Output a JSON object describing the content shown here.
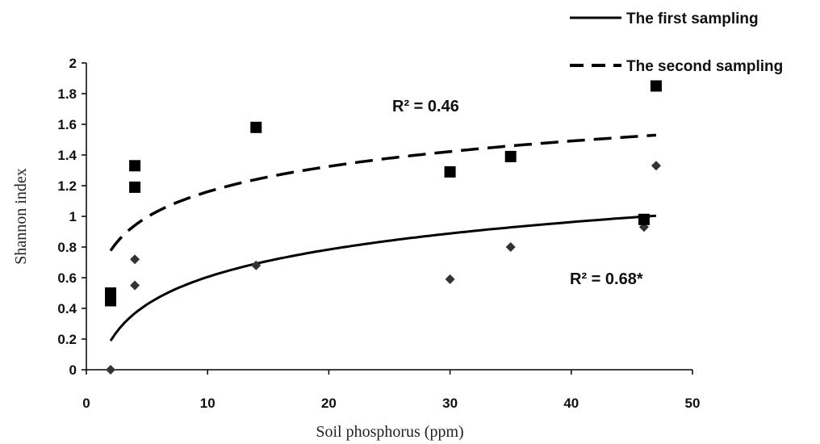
{
  "chart_data": {
    "type": "scatter",
    "title": "",
    "xlabel": "Soil phosphorus (ppm)",
    "ylabel": "Shannon index",
    "xlim": [
      0,
      50
    ],
    "ylim": [
      0,
      2
    ],
    "x_ticks": [
      0,
      10,
      20,
      30,
      40,
      50
    ],
    "y_ticks": [
      0,
      0.2,
      0.4,
      0.6,
      0.8,
      1,
      1.2,
      1.4,
      1.6,
      1.8,
      2
    ],
    "x_tick_labels": [
      "0",
      "10",
      "20",
      "30",
      "40",
      "50"
    ],
    "y_tick_labels": [
      "0",
      "0.2",
      "0.4",
      "0.6",
      "0.8",
      "1",
      "1.2",
      "1.4",
      "1.6",
      "1.8",
      "2"
    ],
    "grid": false,
    "legend_position": "top-right",
    "series": [
      {
        "name": "The first sampling",
        "marker": "diamond",
        "color": "#333333",
        "points": [
          {
            "x": 2,
            "y": 0.0
          },
          {
            "x": 4,
            "y": 0.55
          },
          {
            "x": 4,
            "y": 0.72
          },
          {
            "x": 14,
            "y": 0.68
          },
          {
            "x": 30,
            "y": 0.59
          },
          {
            "x": 35,
            "y": 0.8
          },
          {
            "x": 46,
            "y": 0.93
          },
          {
            "x": 47,
            "y": 1.33
          }
        ],
        "trend": {
          "type": "logarithmic",
          "line_style": "solid",
          "x_range": [
            2,
            47
          ],
          "points": [
            [
              2,
              0.18
            ],
            [
              4,
              0.38
            ],
            [
              14,
              0.69
            ],
            [
              30,
              0.89
            ],
            [
              46,
              1.0
            ],
            [
              47,
              1.0
            ]
          ]
        },
        "r2_label": "R² = 0.68*"
      },
      {
        "name": "The second sampling",
        "marker": "square",
        "color": "#000000",
        "points": [
          {
            "x": 2,
            "y": 0.45
          },
          {
            "x": 2,
            "y": 0.5
          },
          {
            "x": 4,
            "y": 1.19
          },
          {
            "x": 4,
            "y": 1.33
          },
          {
            "x": 14,
            "y": 1.58
          },
          {
            "x": 30,
            "y": 1.29
          },
          {
            "x": 35,
            "y": 1.39
          },
          {
            "x": 46,
            "y": 0.98
          },
          {
            "x": 47,
            "y": 1.85
          }
        ],
        "trend": {
          "type": "logarithmic",
          "line_style": "dashed",
          "x_range": [
            2,
            47
          ],
          "points": [
            [
              2,
              0.77
            ],
            [
              4,
              0.95
            ],
            [
              14,
              1.24
            ],
            [
              30,
              1.42
            ],
            [
              47,
              1.53
            ]
          ]
        },
        "r2_label": "R² = 0.46"
      }
    ]
  }
}
